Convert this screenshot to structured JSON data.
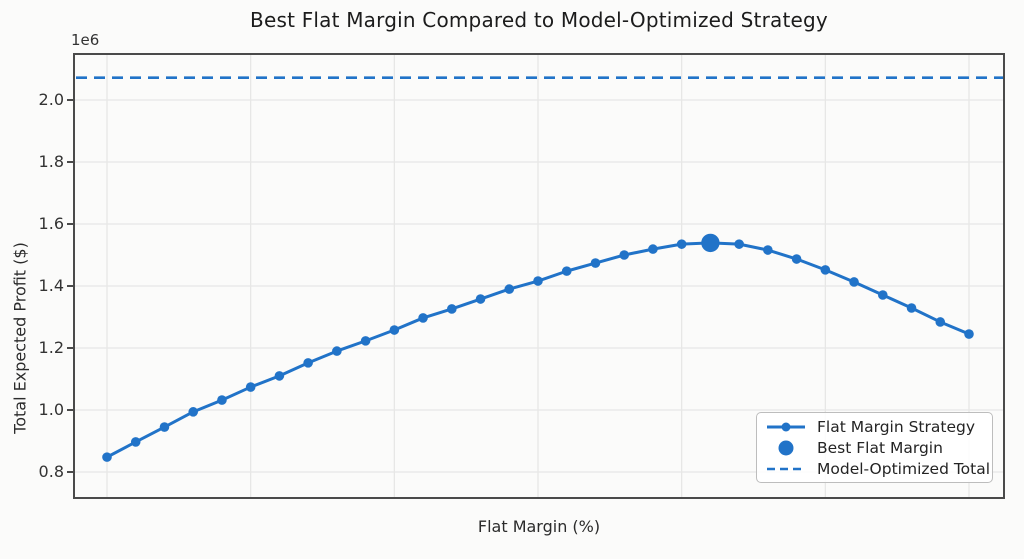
{
  "figure": {
    "title": "Best Flat Margin Compared to Model-Optimized Strategy",
    "xlabel": "Flat Margin (%)",
    "ylabel": "Total Expected Profit ($)",
    "offset_text": "1e6"
  },
  "colors": {
    "series_blue": "#2173c8",
    "grid": "#e7e7e6",
    "spine": "#4a4a4a",
    "title_text": "#1c1c1c",
    "label_text": "#2b2b2b",
    "background": "#fbfbfa",
    "legend_border": "#bdbdbd"
  },
  "legend": {
    "position": "lower right",
    "items": [
      {
        "label": "Flat Margin Strategy",
        "marker": "line-dot"
      },
      {
        "label": "Best Flat Margin",
        "marker": "big-dot"
      },
      {
        "label": "Model-Optimized Total",
        "marker": "dashed-line"
      }
    ]
  },
  "chart_data": {
    "type": "line",
    "title": "Best Flat Margin Compared to Model-Optimized Strategy",
    "xlabel": "Flat Margin (%)",
    "ylabel": "Total Expected Profit ($)",
    "y_unit_multiplier": "1e6",
    "grid": true,
    "x_tick_labels_visible": false,
    "x": [
      0,
      1,
      2,
      3,
      4,
      5,
      6,
      7,
      8,
      9,
      10,
      11,
      12,
      13,
      14,
      15,
      16,
      17,
      18,
      19,
      20,
      21,
      22,
      23,
      24,
      25,
      26,
      27,
      28,
      29,
      30
    ],
    "x_ticks": [
      0,
      5,
      10,
      15,
      20,
      25,
      30
    ],
    "y_ticks": [
      0.8,
      1.0,
      1.2,
      1.4,
      1.6,
      1.8,
      2.0
    ],
    "y_tick_labels": [
      "0.8",
      "1.0",
      "1.2",
      "1.4",
      "1.6",
      "1.8",
      "2.0"
    ],
    "ylim": [
      0.69,
      2.15
    ],
    "series": [
      {
        "name": "Flat Margin Strategy",
        "values": [
          0.848,
          0.897,
          0.945,
          0.994,
          1.032,
          1.074,
          1.11,
          1.152,
          1.19,
          1.223,
          1.258,
          1.297,
          1.326,
          1.358,
          1.39,
          1.416,
          1.448,
          1.474,
          1.5,
          1.519,
          1.535,
          1.539,
          1.535,
          1.516,
          1.487,
          1.452,
          1.413,
          1.371,
          1.329,
          1.284,
          1.245
        ]
      }
    ],
    "best_point": {
      "name": "Best Flat Margin",
      "x": 21,
      "y": 1.539
    },
    "model_optimized_total": 2.072
  }
}
